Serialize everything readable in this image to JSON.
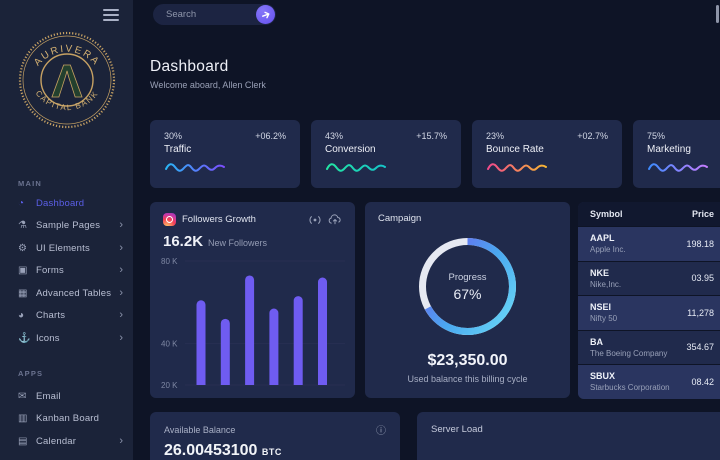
{
  "sidebar": {
    "logo": {
      "top_text": "AURIVERA",
      "bottom_text": "CAPITAL BANK",
      "monogram": "Λ"
    },
    "main_label": "MAIN",
    "apps_label": "APPS",
    "main_items": [
      {
        "label": "Dashboard",
        "icon": "speedometer-icon",
        "glyph": "◔",
        "active": true,
        "has_submenu": false
      },
      {
        "label": "Sample Pages",
        "icon": "flask-icon",
        "glyph": "⚗",
        "active": false,
        "has_submenu": true
      },
      {
        "label": "UI Elements",
        "icon": "gear-icon",
        "glyph": "⚙",
        "active": false,
        "has_submenu": true
      },
      {
        "label": "Forms",
        "icon": "clipboard-icon",
        "glyph": "▣",
        "active": false,
        "has_submenu": true
      },
      {
        "label": "Advanced Tables",
        "icon": "table-icon",
        "glyph": "▦",
        "active": false,
        "has_submenu": true
      },
      {
        "label": "Charts",
        "icon": "pie-chart-icon",
        "glyph": "◕",
        "active": false,
        "has_submenu": true
      },
      {
        "label": "Icons",
        "icon": "anchor-icon",
        "glyph": "⚓",
        "active": false,
        "has_submenu": true
      }
    ],
    "app_items": [
      {
        "label": "Email",
        "icon": "envelope-icon",
        "glyph": "✉",
        "active": false,
        "has_submenu": false
      },
      {
        "label": "Kanban Board",
        "icon": "kanban-icon",
        "glyph": "▥",
        "active": false,
        "has_submenu": false
      },
      {
        "label": "Calendar",
        "icon": "calendar-icon",
        "glyph": "▤",
        "active": false,
        "has_submenu": true
      }
    ]
  },
  "topbar": {
    "search_placeholder": "Search"
  },
  "header": {
    "title": "Dashboard",
    "subtitle": "Welcome aboard, Allen Clerk"
  },
  "stat_cards": [
    {
      "value": "30%",
      "delta": "+06.2%",
      "label": "Traffic",
      "colors": [
        "#29b6f6",
        "#7c4dff"
      ]
    },
    {
      "value": "43%",
      "delta": "+15.7%",
      "label": "Conversion",
      "colors": [
        "#23e5a2",
        "#16c5c9"
      ]
    },
    {
      "value": "23%",
      "delta": "+02.7%",
      "label": "Bounce Rate",
      "colors": [
        "#f24a8b",
        "#f7b733"
      ]
    },
    {
      "value": "75%",
      "delta": "",
      "label": "Marketing",
      "colors": [
        "#3d8bfd",
        "#c77dff"
      ]
    }
  ],
  "followers": {
    "title": "Followers Growth",
    "stat_value": "16.2K",
    "stat_label": "New Followers",
    "chart_data": {
      "type": "bar",
      "values": [
        61,
        52,
        73,
        57,
        63,
        72
      ],
      "unit": "K",
      "ylim": [
        20,
        85
      ],
      "ticks": [
        {
          "label": "80 K",
          "value": 80
        },
        {
          "label": "40 K",
          "value": 40
        },
        {
          "label": "20 K",
          "value": 20
        }
      ],
      "bar_color": "#6f5cf1",
      "grid_color": "#272f52"
    }
  },
  "campaign": {
    "title": "Campaign",
    "progress_label": "Progress",
    "progress_value": "67%",
    "progress_percent": 67,
    "amount": "$23,350.00",
    "amount_caption": "Used balance this billing cycle",
    "donut_colors": [
      "#7059f0",
      "#4aa8f0",
      "#67d4f6"
    ],
    "track_color": "#e6e9f2"
  },
  "stocks": {
    "columns": [
      "Symbol",
      "Price"
    ],
    "rows": [
      {
        "symbol": "AAPL",
        "company": "Apple Inc.",
        "price": "198.18"
      },
      {
        "symbol": "NKE",
        "company": "Nike,Inc.",
        "price": "03.95"
      },
      {
        "symbol": "NSEI",
        "company": "Nifty 50",
        "price": "11,278"
      },
      {
        "symbol": "BA",
        "company": "The Boeing Company",
        "price": "354.67"
      },
      {
        "symbol": "SBUX",
        "company": "Starbucks Corporation",
        "price": "08.42"
      }
    ]
  },
  "balance": {
    "label": "Available Balance",
    "value": "26.00453100",
    "unit": "BTC"
  },
  "server_load": {
    "title": "Server Load"
  },
  "colors": {
    "background": "#0e1426",
    "sidebar": "#1b2339",
    "card": "#202a4b",
    "accent": "#5b5fe8",
    "logo_gold": "#c6a163",
    "logo_green": "#23402e"
  }
}
